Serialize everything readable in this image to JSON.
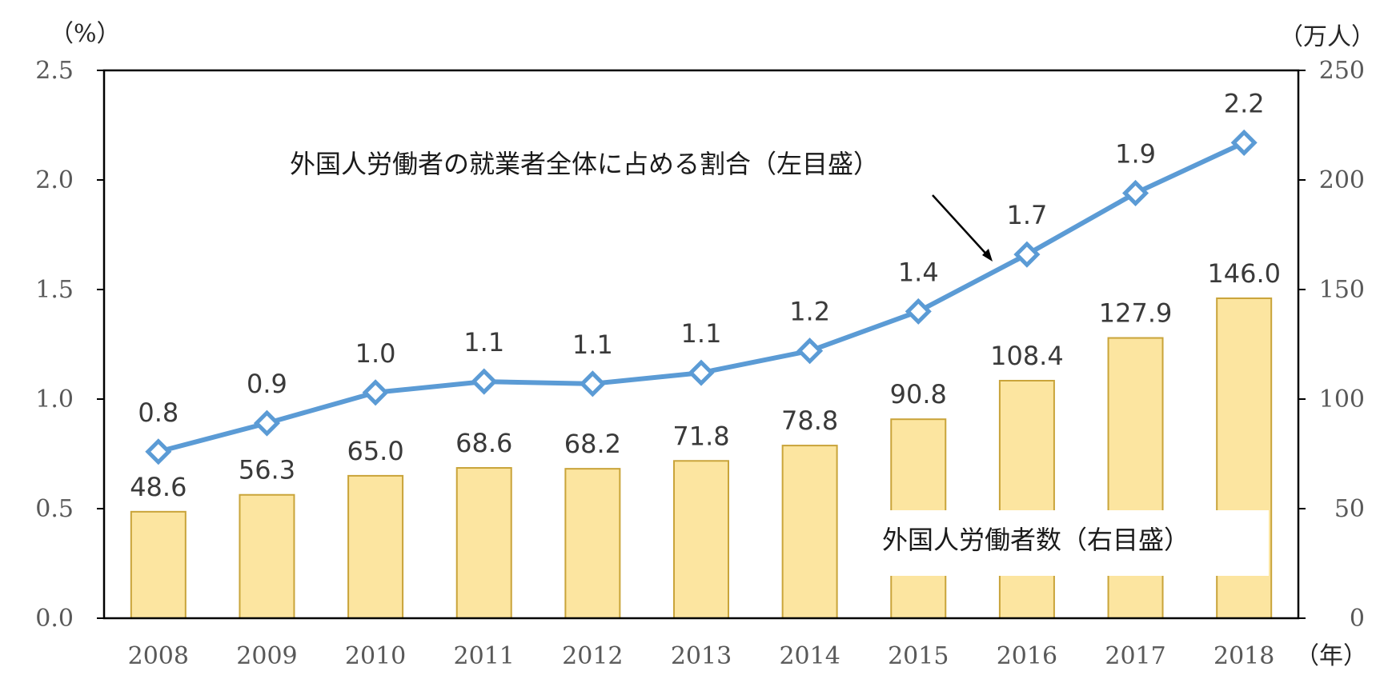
{
  "chart_data": {
    "type": "bar+line",
    "categories": [
      "2008",
      "2009",
      "2010",
      "2011",
      "2012",
      "2013",
      "2014",
      "2015",
      "2016",
      "2017",
      "2018"
    ],
    "series": [
      {
        "name": "外国人労働者数（右目盛）",
        "type": "bar",
        "axis": "right",
        "values": [
          48.6,
          56.3,
          65.0,
          68.6,
          68.2,
          71.8,
          78.8,
          90.8,
          108.4,
          127.9,
          146.0
        ],
        "labels": [
          "48.6",
          "56.3",
          "65.0",
          "68.6",
          "68.2",
          "71.8",
          "78.8",
          "90.8",
          "108.4",
          "127.9",
          "146.0"
        ],
        "color": "#FCE5A0",
        "stroke": "#C9A43A"
      },
      {
        "name": "外国人労働者の就業者全体に占める割合（左目盛）",
        "type": "line",
        "axis": "left",
        "values": [
          0.76,
          0.89,
          1.03,
          1.08,
          1.07,
          1.12,
          1.22,
          1.4,
          1.66,
          1.94,
          2.17
        ],
        "labels": [
          "0.8",
          "0.9",
          "1.0",
          "1.1",
          "1.1",
          "1.1",
          "1.2",
          "1.4",
          "1.7",
          "1.9",
          "2.2"
        ],
        "color": "#5B9BD5"
      }
    ],
    "left_axis": {
      "unit": "（%）",
      "ylim": [
        0,
        2.5
      ],
      "ticks": [
        "0.0",
        "0.5",
        "1.0",
        "1.5",
        "2.0",
        "2.5"
      ]
    },
    "right_axis": {
      "unit": "（万人）",
      "ylim": [
        0,
        250
      ],
      "ticks": [
        "0",
        "50",
        "100",
        "150",
        "200",
        "250"
      ]
    },
    "x_unit": "（年）",
    "grid": false,
    "annotations": {
      "line_label": "外国人労働者の就業者全体に占める割合（左目盛）",
      "bar_label": "外国人労働者数（右目盛）"
    }
  }
}
